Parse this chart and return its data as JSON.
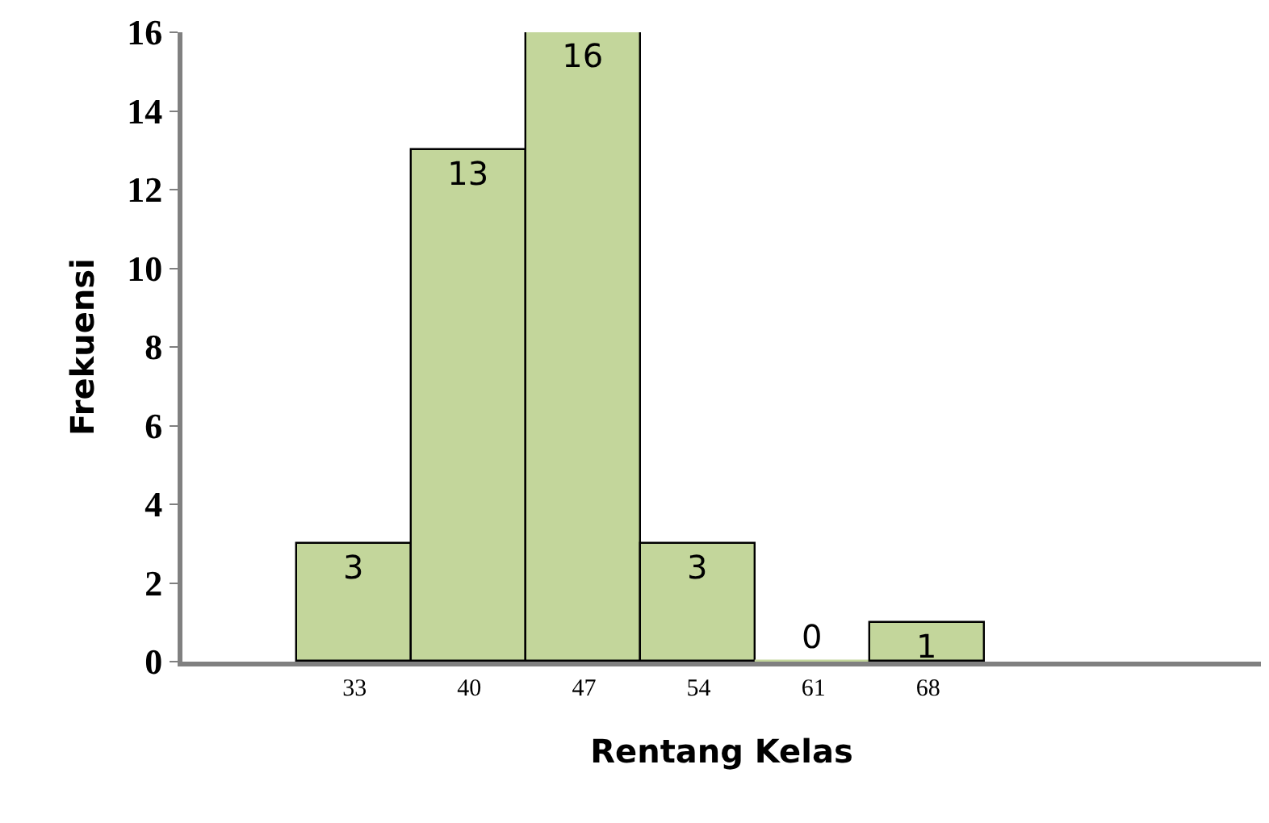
{
  "chart_data": {
    "type": "bar",
    "xlabel": "Rentang Kelas",
    "ylabel": "Frekuensi",
    "categories": [
      "33",
      "40",
      "47",
      "54",
      "61",
      "68"
    ],
    "values": [
      3,
      13,
      16,
      3,
      0,
      1
    ],
    "color": "#c3d69b",
    "ylim": [
      0,
      16
    ],
    "yticks": [
      0,
      2,
      4,
      6,
      8,
      10,
      12,
      14,
      16
    ],
    "data_labels": true
  }
}
